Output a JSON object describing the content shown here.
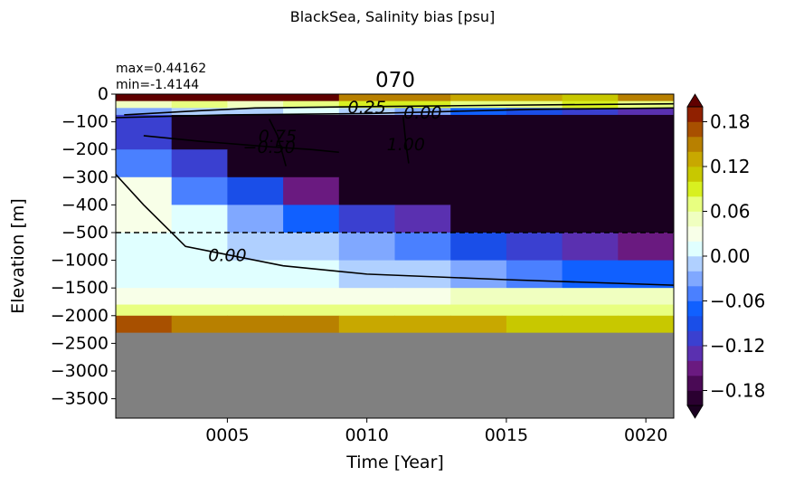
{
  "chart_data": {
    "type": "heatmap",
    "suptitle": "BlackSea, Salinity bias [psu]",
    "title": "070",
    "annotations": [
      "max=0.44162",
      "min=-1.4144"
    ],
    "xlabel": "Time [Year]",
    "ylabel": "Elevation [m]",
    "xlim": [
      1,
      21
    ],
    "xticks": [
      {
        "value": 5,
        "label": "0005"
      },
      {
        "value": 10,
        "label": "0010"
      },
      {
        "value": 15,
        "label": "0015"
      },
      {
        "value": 20,
        "label": "0020"
      }
    ],
    "ylim": [
      -3850,
      0
    ],
    "yticks": [
      0,
      {
        "value": -100,
        "label": "−100"
      },
      {
        "value": -200,
        "label": "−200"
      },
      {
        "value": -300,
        "label": "−300"
      },
      {
        "value": -400,
        "label": "−400"
      },
      {
        "value": -500,
        "label": "−500"
      },
      {
        "value": -1000,
        "label": "−1000"
      },
      {
        "value": -1500,
        "label": "−1500"
      },
      {
        "value": -2000,
        "label": "−2000"
      },
      {
        "value": -2500,
        "label": "−2500"
      },
      {
        "value": -3000,
        "label": "−3000"
      },
      {
        "value": -3500,
        "label": "−3500"
      }
    ],
    "missing_color": "#808080",
    "x_edges": [
      1,
      3,
      5,
      7,
      9,
      11,
      13,
      15,
      17,
      19,
      21
    ],
    "y_edges": [
      0,
      -25,
      -50,
      -75,
      -100,
      -200,
      -300,
      -400,
      -500,
      -1000,
      -1500,
      -1800,
      -2000,
      -2300
    ],
    "values": [
      [
        0.2,
        0.2,
        0.2,
        0.2,
        0.14,
        0.14,
        0.12,
        0.12,
        0.1,
        0.14
      ],
      [
        0.04,
        0.06,
        0.04,
        0.06,
        0.08,
        0.08,
        0.06,
        0.06,
        0.08,
        0.06
      ],
      [
        -0.04,
        -0.02,
        -0.02,
        0.0,
        -0.02,
        -0.04,
        -0.08,
        -0.1,
        -0.12,
        -0.14
      ],
      [
        -0.12,
        -0.21,
        -0.21,
        -0.21,
        -0.21,
        -0.21,
        -0.21,
        -0.21,
        -0.21,
        -0.21
      ],
      [
        -0.12,
        -0.21,
        -0.21,
        -0.21,
        -0.21,
        -0.21,
        -0.21,
        -0.21,
        -0.21,
        -0.21
      ],
      [
        -0.06,
        -0.12,
        -0.21,
        -0.21,
        -0.21,
        -0.21,
        -0.21,
        -0.21,
        -0.21,
        -0.21
      ],
      [
        0.02,
        -0.05,
        -0.1,
        -0.15,
        -0.21,
        -0.21,
        -0.21,
        -0.21,
        -0.21,
        -0.21
      ],
      [
        0.02,
        0.0,
        -0.03,
        -0.08,
        -0.12,
        -0.14,
        -0.21,
        -0.21,
        -0.21,
        -0.21
      ],
      [
        0.01,
        0.0,
        -0.01,
        -0.02,
        -0.04,
        -0.05,
        -0.1,
        -0.12,
        -0.14,
        -0.16
      ],
      [
        0.01,
        0.01,
        0.0,
        0.0,
        -0.01,
        -0.02,
        -0.04,
        -0.06,
        -0.08,
        -0.08
      ],
      [
        0.03,
        0.03,
        0.03,
        0.03,
        0.03,
        0.03,
        0.04,
        0.04,
        0.04,
        0.04
      ],
      [
        0.06,
        0.06,
        0.06,
        0.06,
        0.06,
        0.06,
        0.07,
        0.07,
        0.07,
        0.07
      ],
      [
        0.16,
        0.14,
        0.14,
        0.14,
        0.12,
        0.12,
        0.12,
        0.1,
        0.1,
        0.1
      ]
    ],
    "colorbar": {
      "levels": [
        -0.2,
        -0.18,
        -0.16,
        -0.14,
        -0.12,
        -0.1,
        -0.08,
        -0.06,
        -0.04,
        -0.02,
        0,
        0.02,
        0.04,
        0.06,
        0.08,
        0.1,
        0.12,
        0.14,
        0.16,
        0.18,
        0.2
      ],
      "colors": [
        "#2a0030",
        "#4a0a55",
        "#6a1a80",
        "#5a30b0",
        "#3a40d0",
        "#1a4ee8",
        "#1060ff",
        "#4a80ff",
        "#80a8ff",
        "#b0d0ff",
        "#e0ffff",
        "#f8ffe8",
        "#f0ffc0",
        "#e8ff80",
        "#d8f020",
        "#c8c800",
        "#c8a800",
        "#b88000",
        "#a85000",
        "#902000"
      ],
      "under_color": "#1a0020",
      "over_color": "#600000",
      "ticks": [
        {
          "value": -0.18,
          "label": "−0.18"
        },
        {
          "value": -0.12,
          "label": "−0.12"
        },
        {
          "value": -0.06,
          "label": "−0.06"
        },
        {
          "value": 0,
          "label": "0.00"
        },
        0.06,
        0.12,
        0.18
      ]
    },
    "hline": -500,
    "contours": [
      {
        "label": "0.00",
        "x": [
          1,
          2,
          3,
          3.5,
          5,
          7,
          10,
          15,
          21
        ],
        "y": [
          -290,
          -400,
          -500,
          -750,
          -900,
          -1100,
          -1250,
          -1350,
          -1450
        ]
      },
      {
        "label": "0.25",
        "x": [
          1.3,
          4,
          6,
          10,
          15,
          21
        ],
        "y": [
          -75,
          -60,
          -50,
          -45,
          -40,
          -35
        ]
      },
      {
        "label": "0.00",
        "x": [
          1,
          5,
          10,
          12,
          16,
          21
        ],
        "y": [
          -85,
          -75,
          -70,
          -65,
          -55,
          -50
        ]
      },
      {
        "label": "−0.50",
        "x": [
          2,
          4,
          6.5,
          8,
          9
        ],
        "y": [
          -150,
          -170,
          -190,
          -200,
          -210
        ]
      },
      {
        "label": "0.75",
        "x": [
          6.5,
          6.8,
          7.1
        ],
        "y": [
          -90,
          -150,
          -260
        ]
      },
      {
        "label": "1.00",
        "x": [
          11.3,
          11.4,
          11.5
        ],
        "y": [
          -80,
          -180,
          -250
        ]
      }
    ]
  }
}
